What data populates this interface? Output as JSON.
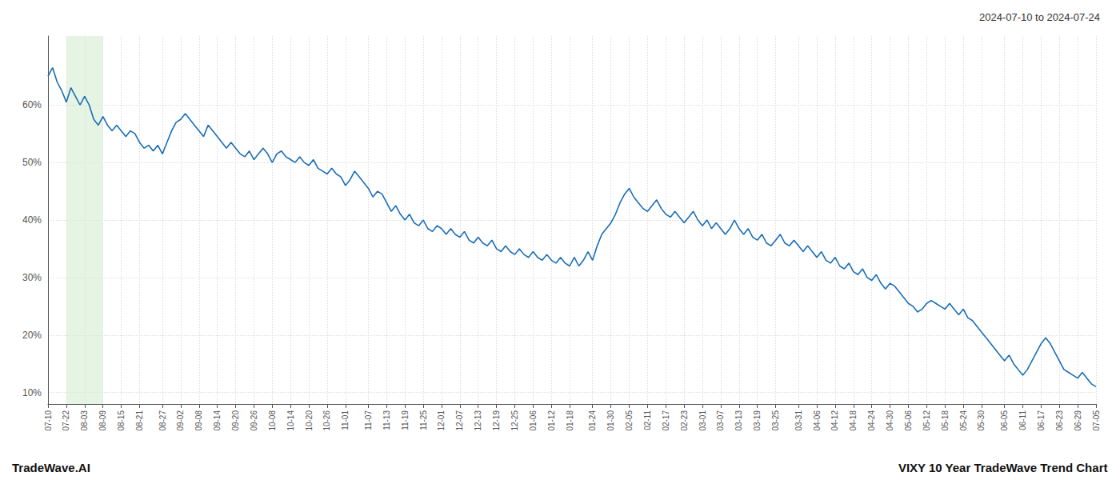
{
  "chart_data": {
    "type": "line",
    "title": "2024-07-10 to 2024-07-24",
    "annotations": [
      "TradeWave.AI",
      "VIXY 10 Year TradeWave Trend Chart"
    ],
    "color": "#1a6db5",
    "grid": true,
    "ylim": [
      8,
      72
    ],
    "yticks": [
      {
        "value": 10,
        "label": "10%"
      },
      {
        "value": 20,
        "label": "20%"
      },
      {
        "value": 30,
        "label": "30%"
      },
      {
        "value": 40,
        "label": "40%"
      },
      {
        "value": 50,
        "label": "50%"
      },
      {
        "value": 60,
        "label": "60%"
      }
    ],
    "span": {
      "from": "07-22",
      "to": "08-09",
      "color": "#d6ecd2"
    },
    "categories": [
      "07-10",
      null,
      null,
      null,
      "07-22",
      null,
      null,
      null,
      "08-03",
      null,
      null,
      null,
      "08-09",
      null,
      null,
      null,
      "08-15",
      null,
      null,
      null,
      "08-21",
      null,
      null,
      null,
      null,
      "08-27",
      null,
      null,
      null,
      "09-02",
      null,
      null,
      null,
      "09-08",
      null,
      null,
      null,
      "09-14",
      null,
      null,
      null,
      "09-20",
      null,
      null,
      null,
      "09-26",
      null,
      null,
      null,
      "10-08",
      null,
      null,
      null,
      "10-14",
      null,
      null,
      null,
      "10-20",
      null,
      null,
      null,
      "10-26",
      null,
      null,
      null,
      "11-01",
      null,
      null,
      null,
      null,
      "11-07",
      null,
      null,
      null,
      "11-13",
      null,
      null,
      null,
      "11-19",
      null,
      null,
      null,
      "11-25",
      null,
      null,
      null,
      "12-01",
      null,
      null,
      null,
      "12-07",
      null,
      null,
      null,
      "12-13",
      null,
      null,
      null,
      "12-19",
      null,
      null,
      null,
      "12-25",
      null,
      null,
      null,
      "01-06",
      null,
      null,
      null,
      "01-12",
      null,
      null,
      null,
      "01-18",
      null,
      null,
      null,
      null,
      "01-24",
      null,
      null,
      null,
      "01-30",
      null,
      null,
      null,
      "02-05",
      null,
      null,
      null,
      "02-11",
      null,
      null,
      null,
      "02-17",
      null,
      null,
      null,
      "02-23",
      null,
      null,
      null,
      "03-01",
      null,
      null,
      null,
      "03-07",
      null,
      null,
      null,
      "03-13",
      null,
      null,
      null,
      "03-19",
      null,
      null,
      null,
      "03-25",
      null,
      null,
      null,
      null,
      "03-31",
      null,
      null,
      null,
      "04-06",
      null,
      null,
      null,
      "04-12",
      null,
      null,
      null,
      "04-18",
      null,
      null,
      null,
      "04-24",
      null,
      null,
      null,
      "04-30",
      null,
      null,
      null,
      "05-06",
      null,
      null,
      null,
      "05-12",
      null,
      null,
      null,
      "05-18",
      null,
      null,
      null,
      "05-24",
      null,
      null,
      null,
      "05-30",
      null,
      null,
      null,
      null,
      "06-05",
      null,
      null,
      null,
      "06-11",
      null,
      null,
      null,
      "06-17",
      null,
      null,
      null,
      "06-23",
      null,
      null,
      null,
      "06-29",
      null,
      null,
      null,
      "07-05"
    ],
    "values": [
      65.0,
      66.5,
      64.0,
      62.5,
      60.5,
      63.0,
      61.5,
      60.0,
      61.5,
      60.0,
      57.5,
      56.5,
      58.0,
      56.5,
      55.5,
      56.5,
      55.5,
      54.5,
      55.5,
      55.0,
      53.5,
      52.5,
      53.0,
      52.0,
      53.0,
      51.5,
      53.5,
      55.5,
      57.0,
      57.5,
      58.5,
      57.5,
      56.5,
      55.5,
      54.5,
      56.5,
      55.5,
      54.5,
      53.5,
      52.5,
      53.5,
      52.5,
      51.5,
      51.0,
      52.0,
      50.5,
      51.5,
      52.5,
      51.5,
      50.0,
      51.5,
      52.0,
      51.0,
      50.5,
      50.0,
      51.0,
      50.0,
      49.5,
      50.5,
      49.0,
      48.5,
      48.0,
      49.0,
      48.0,
      47.5,
      46.0,
      47.0,
      48.5,
      47.5,
      46.5,
      45.5,
      44.0,
      45.0,
      44.5,
      43.0,
      41.5,
      42.5,
      41.0,
      40.0,
      41.0,
      39.5,
      39.0,
      40.0,
      38.5,
      38.0,
      39.0,
      38.5,
      37.5,
      38.5,
      37.5,
      37.0,
      38.0,
      36.5,
      36.0,
      37.0,
      36.0,
      35.5,
      36.5,
      35.0,
      34.5,
      35.5,
      34.5,
      34.0,
      35.0,
      34.0,
      33.5,
      34.5,
      33.5,
      33.0,
      34.0,
      33.0,
      32.5,
      33.5,
      32.5,
      32.0,
      33.5,
      32.0,
      33.0,
      34.5,
      33.0,
      35.5,
      37.5,
      38.5,
      39.5,
      41.0,
      43.0,
      44.5,
      45.5,
      44.0,
      43.0,
      42.0,
      41.5,
      42.5,
      43.5,
      42.0,
      41.0,
      40.5,
      41.5,
      40.5,
      39.5,
      40.5,
      41.5,
      40.0,
      39.0,
      40.0,
      38.5,
      39.5,
      38.5,
      37.5,
      38.5,
      40.0,
      38.5,
      37.5,
      38.5,
      37.0,
      36.5,
      37.5,
      36.0,
      35.5,
      36.5,
      37.5,
      36.0,
      35.5,
      36.5,
      35.5,
      34.5,
      35.5,
      34.5,
      33.5,
      34.5,
      33.0,
      32.5,
      33.5,
      32.0,
      31.5,
      32.5,
      31.0,
      30.5,
      31.5,
      30.0,
      29.5,
      30.5,
      29.0,
      28.0,
      29.0,
      28.5,
      27.5,
      26.5,
      25.5,
      25.0,
      24.0,
      24.5,
      25.5,
      26.0,
      25.5,
      25.0,
      24.5,
      25.5,
      24.5,
      23.5,
      24.5,
      23.0,
      22.5,
      21.5,
      20.5,
      19.5,
      18.5,
      17.5,
      16.5,
      15.5,
      16.5,
      15.0,
      14.0,
      13.0,
      14.0,
      15.5,
      17.0,
      18.5,
      19.5,
      18.5,
      17.0,
      15.5,
      14.0,
      13.5,
      13.0,
      12.5,
      13.5,
      12.5,
      11.5,
      11.0
    ]
  }
}
